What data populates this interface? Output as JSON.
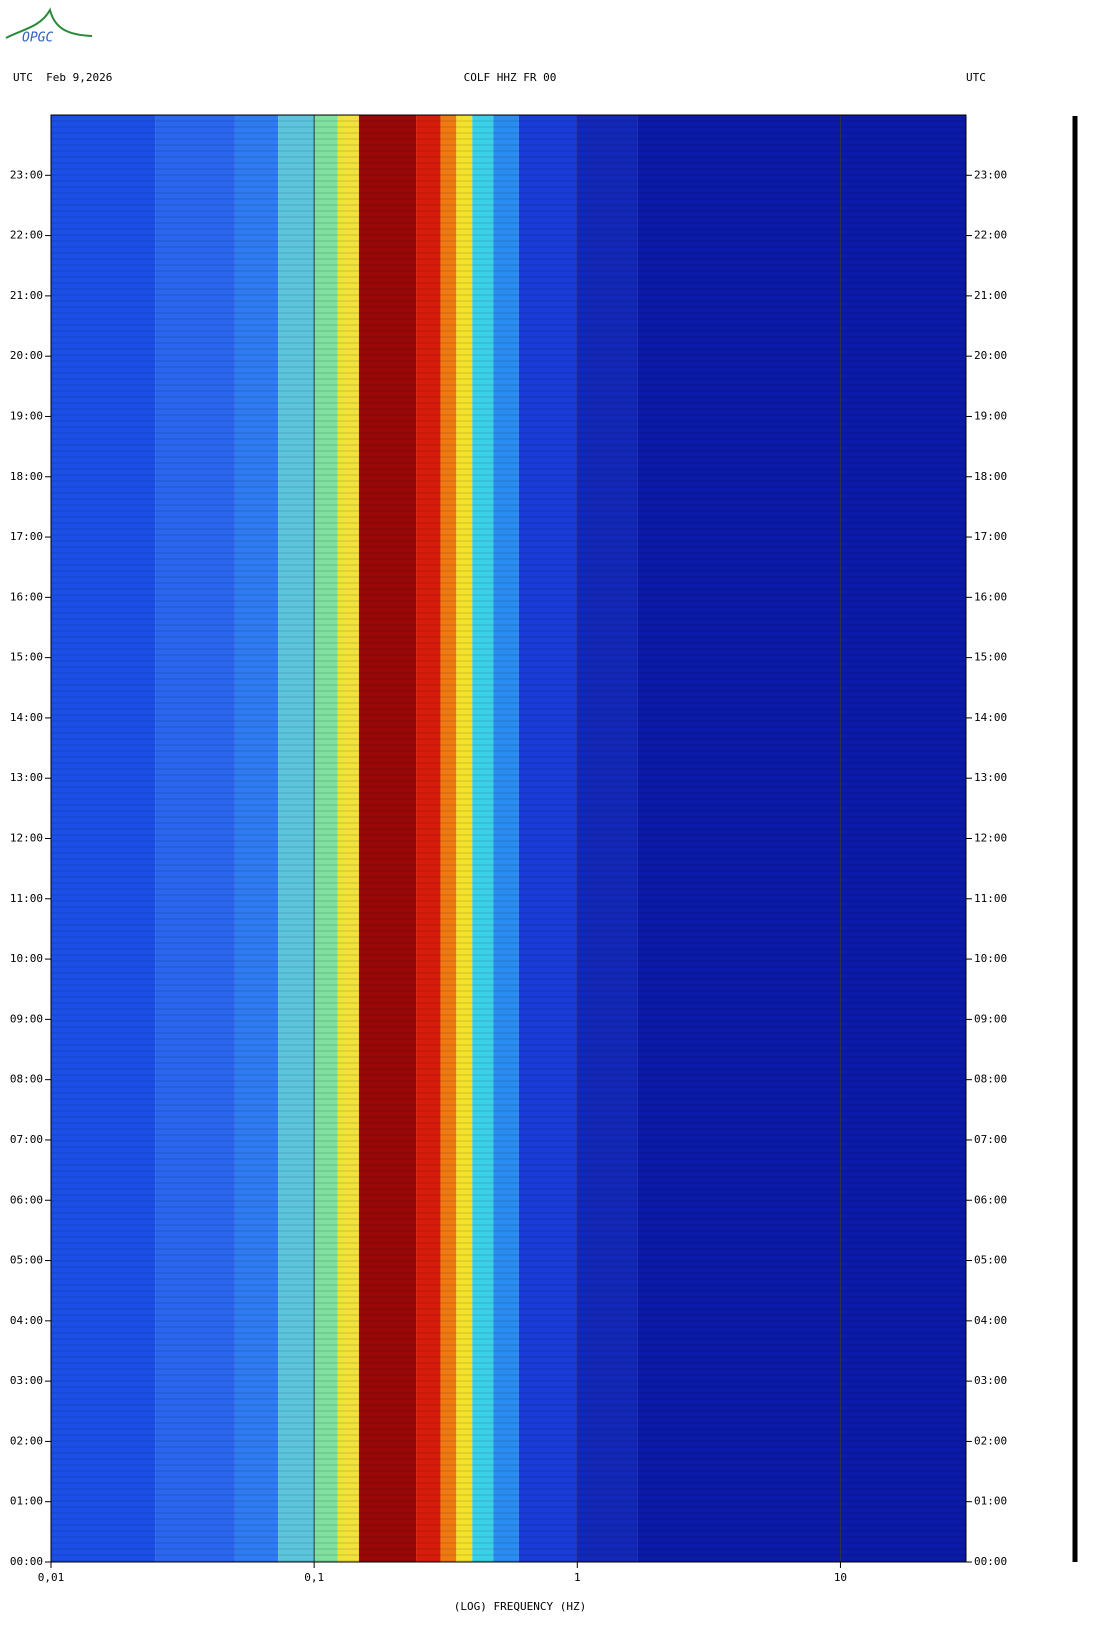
{
  "logo": "OPGC",
  "chart_data": {
    "type": "spectrogram",
    "header_left": "UTC  Feb 9,2026",
    "title": "COLF HHZ FR 00",
    "header_right": "UTC",
    "x_label": "(LOG) FREQUENCY (HZ)",
    "x_log": true,
    "xlim": [
      0.01,
      30
    ],
    "xticks": [
      {
        "value": 0.01,
        "label": "0,01"
      },
      {
        "value": 0.1,
        "label": "0,1"
      },
      1,
      10
    ],
    "ylim": [
      0,
      24
    ],
    "yticks": [
      {
        "value": 0,
        "label": "00:00"
      },
      {
        "value": 1,
        "label": "01:00"
      },
      {
        "value": 2,
        "label": "02:00"
      },
      {
        "value": 3,
        "label": "03:00"
      },
      {
        "value": 4,
        "label": "04:00"
      },
      {
        "value": 5,
        "label": "05:00"
      },
      {
        "value": 6,
        "label": "06:00"
      },
      {
        "value": 7,
        "label": "07:00"
      },
      {
        "value": 8,
        "label": "08:00"
      },
      {
        "value": 9,
        "label": "09:00"
      },
      {
        "value": 10,
        "label": "10:00"
      },
      {
        "value": 11,
        "label": "11:00"
      },
      {
        "value": 12,
        "label": "12:00"
      },
      {
        "value": 13,
        "label": "13:00"
      },
      {
        "value": 14,
        "label": "14:00"
      },
      {
        "value": 15,
        "label": "15:00"
      },
      {
        "value": 16,
        "label": "16:00"
      },
      {
        "value": 17,
        "label": "17:00"
      },
      {
        "value": 18,
        "label": "18:00"
      },
      {
        "value": 19,
        "label": "19:00"
      },
      {
        "value": 20,
        "label": "20:00"
      },
      {
        "value": 21,
        "label": "21:00"
      },
      {
        "value": 22,
        "label": "22:00"
      },
      {
        "value": 23,
        "label": "23:00"
      }
    ],
    "grid": true,
    "bands": {
      "edges": [
        0.01,
        0.025,
        0.05,
        0.073,
        0.1,
        0.123,
        0.148,
        0.244,
        0.302,
        0.347,
        0.399,
        0.48,
        0.6,
        1,
        1.7,
        30
      ],
      "colors": [
        "#1c4fe8",
        "#2a66ee",
        "#2f7cf2",
        "#5cc4dc",
        "#7fe0a0",
        "#f2e23a",
        "#980808",
        "#d81c0c",
        "#f07a12",
        "#f4e22a",
        "#3ad0e8",
        "#2a8cf0",
        "#1a3cd8",
        "#1428b8",
        "#0c1aa8"
      ]
    }
  }
}
